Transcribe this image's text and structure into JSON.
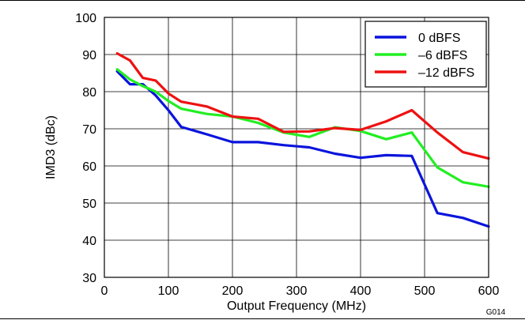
{
  "chart_data": {
    "type": "line",
    "figure_id": "G014",
    "xlabel": "Output Frequency (MHz)",
    "ylabel": "IMD3 (dBc)",
    "xlim": [
      0,
      600
    ],
    "ylim": [
      30,
      100
    ],
    "xticks": [
      0,
      100,
      200,
      300,
      400,
      500,
      600
    ],
    "yticks": [
      30,
      40,
      50,
      60,
      70,
      80,
      90,
      100
    ],
    "grid": true,
    "legend_position": "top-right",
    "series": [
      {
        "name": "0 dBFS",
        "color": "#0a14dc",
        "points": [
          [
            20,
            85.5
          ],
          [
            40,
            82
          ],
          [
            60,
            82
          ],
          [
            80,
            79
          ],
          [
            100,
            75
          ],
          [
            120,
            70.5
          ],
          [
            160,
            68.5
          ],
          [
            200,
            66.4
          ],
          [
            240,
            66.4
          ],
          [
            280,
            65.6
          ],
          [
            320,
            65
          ],
          [
            360,
            63.3
          ],
          [
            400,
            62.2
          ],
          [
            440,
            62.9
          ],
          [
            480,
            62.7
          ],
          [
            520,
            47.3
          ],
          [
            560,
            46
          ],
          [
            600,
            43.7
          ]
        ]
      },
      {
        "name": "–6 dBFS",
        "color": "#22ee22",
        "points": [
          [
            20,
            86
          ],
          [
            40,
            83.3
          ],
          [
            60,
            81.5
          ],
          [
            80,
            80
          ],
          [
            100,
            77.5
          ],
          [
            120,
            75.4
          ],
          [
            160,
            74
          ],
          [
            200,
            73.3
          ],
          [
            240,
            71.6
          ],
          [
            280,
            69
          ],
          [
            320,
            67.8
          ],
          [
            360,
            70.4
          ],
          [
            400,
            69.4
          ],
          [
            440,
            67.2
          ],
          [
            480,
            69
          ],
          [
            520,
            59.6
          ],
          [
            560,
            55.6
          ],
          [
            600,
            54.4
          ]
        ]
      },
      {
        "name": "–12 dBFS",
        "color": "#ee1111",
        "points": [
          [
            20,
            90.3
          ],
          [
            40,
            88.4
          ],
          [
            60,
            83.7
          ],
          [
            80,
            83
          ],
          [
            100,
            79.5
          ],
          [
            120,
            77.3
          ],
          [
            160,
            76
          ],
          [
            200,
            73.3
          ],
          [
            240,
            72.7
          ],
          [
            280,
            69.2
          ],
          [
            320,
            69.3
          ],
          [
            360,
            70.2
          ],
          [
            400,
            69.7
          ],
          [
            440,
            72
          ],
          [
            480,
            75
          ],
          [
            520,
            69
          ],
          [
            560,
            63.7
          ],
          [
            600,
            62
          ]
        ]
      }
    ]
  }
}
